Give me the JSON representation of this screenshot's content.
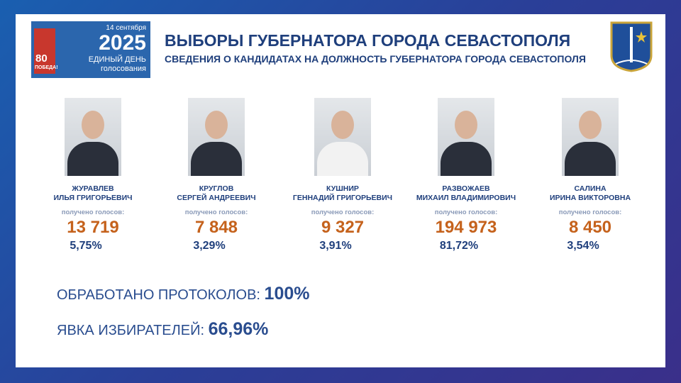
{
  "header": {
    "logo": {
      "badge_number": "80",
      "badge_text": "ПОБЕДА!",
      "date": "14 сентября",
      "year": "2025",
      "line1": "ЕДИНЫЙ ДЕНЬ",
      "line2": "голосования"
    },
    "title": "ВЫБОРЫ ГУБЕРНАТОРА ГОРОДА СЕВАСТОПОЛЯ",
    "subtitle": "СВЕДЕНИЯ О КАНДИДАТАХ НА ДОЛЖНОСТЬ ГУБЕРНАТОРА ГОРОДА СЕВАСТОПОЛЯ"
  },
  "candidates": [
    {
      "surname": "ЖУРАВЛЕВ",
      "name": "ИЛЬЯ ГРИГОРЬЕВИЧ",
      "votes_label": "получено голосов:",
      "votes": "13 719",
      "percent": "5,75%"
    },
    {
      "surname": "КРУГЛОВ",
      "name": "СЕРГЕЙ АНДРЕЕВИЧ",
      "votes_label": "получено голосов:",
      "votes": "7 848",
      "percent": "3,29%"
    },
    {
      "surname": "КУШНИР",
      "name": "ГЕННАДИЙ ГРИГОРЬЕВИЧ",
      "votes_label": "получено голосов:",
      "votes": "9 327",
      "percent": "3,91%"
    },
    {
      "surname": "РАЗВОЖАЕВ",
      "name": "МИХАИЛ ВЛАДИМИРОВИЧ",
      "votes_label": "получено голосов:",
      "votes": "194 973",
      "percent": "81,72%"
    },
    {
      "surname": "САЛИНА",
      "name": "ИРИНА ВИКТОРОВНА",
      "votes_label": "получено голосов:",
      "votes": "8 450",
      "percent": "3,54%"
    }
  ],
  "summary": [
    {
      "label": "ОБРАБОТАНО ПРОТОКОЛОВ:",
      "value": "100%"
    },
    {
      "label": "ЯВКА ИЗБИРАТЕЛЕЙ:",
      "value": "66,96%"
    }
  ]
}
